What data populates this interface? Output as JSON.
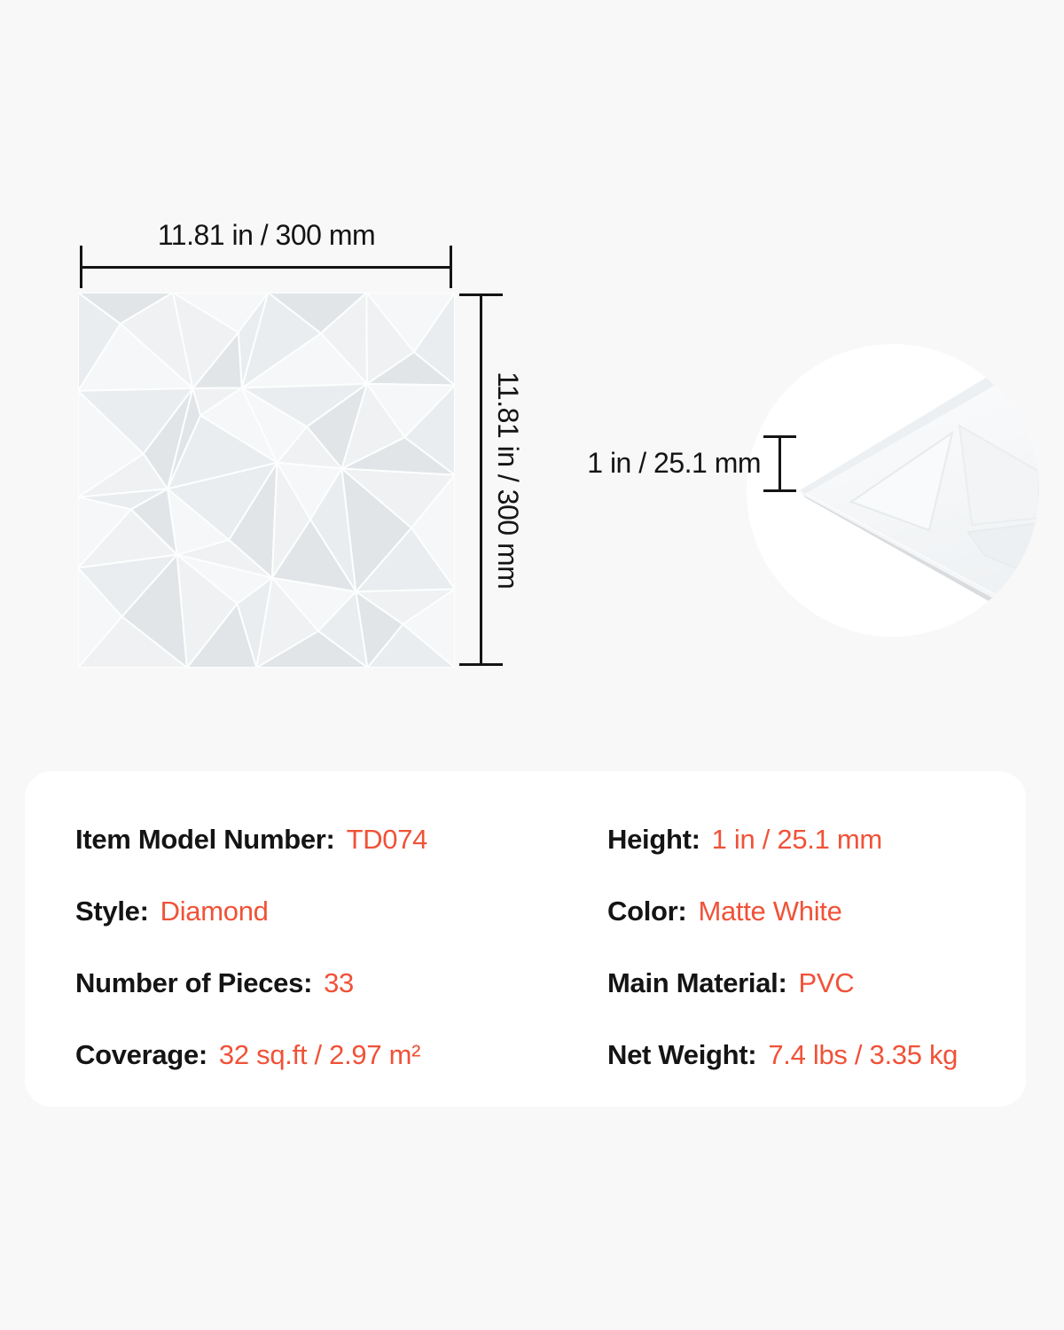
{
  "colors": {
    "accent": "#F05238",
    "ink": "#141414",
    "page_bg": "#f7f8f7",
    "card_bg": "#ffffff"
  },
  "diagram": {
    "width_label": "11.81 in / 300 mm",
    "height_label": "11.81 in / 300 mm",
    "thickness_label": "1 in / 25.1 mm"
  },
  "specs": {
    "rows": [
      {
        "label": "Item Model Number:",
        "value": "TD074"
      },
      {
        "label": "Height:",
        "value": "1 in / 25.1 mm"
      },
      {
        "label": "Style:",
        "value": "Diamond"
      },
      {
        "label": "Color:",
        "value": "Matte White"
      },
      {
        "label": "Number of Pieces:",
        "value": "33"
      },
      {
        "label": "Main Material:",
        "value": "PVC"
      },
      {
        "label": "Coverage:",
        "value": "32 sq.ft / 2.97 m²"
      },
      {
        "label": "Net Weight:",
        "value": "7.4 lbs / 3.35 kg"
      }
    ]
  }
}
